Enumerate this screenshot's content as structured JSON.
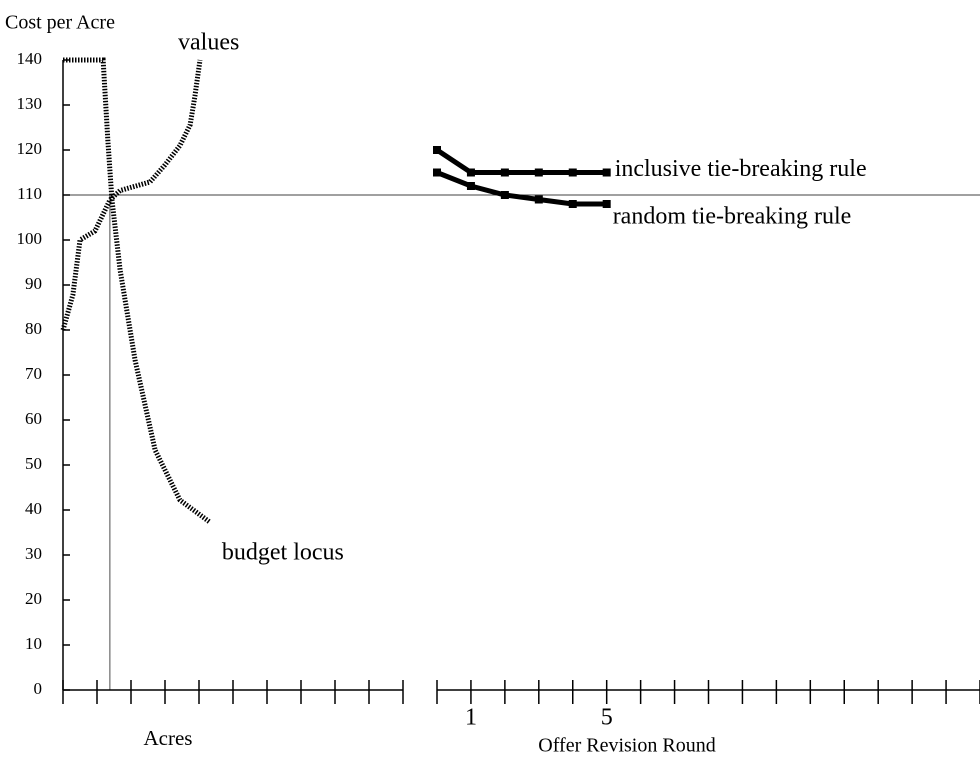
{
  "chart_data": [
    {
      "type": "line",
      "ylabel": "Cost per Acre",
      "xlabel": "Acres",
      "xlim": [
        0,
        10
      ],
      "xticks": [
        0,
        1,
        2,
        3,
        4,
        5,
        6,
        7,
        8,
        9,
        10
      ],
      "ylim": [
        0,
        140
      ],
      "yticks": [
        0,
        10,
        20,
        30,
        40,
        50,
        60,
        70,
        80,
        90,
        100,
        110,
        120,
        130,
        140
      ],
      "hline": 110,
      "vline": 1.38,
      "series": [
        {
          "name": "values",
          "color": "#000000",
          "style": "dotted",
          "x": [
            0,
            0.29,
            0.5,
            0.94,
            1.38,
            1.68,
            2.56,
            3.0,
            3.44,
            3.74,
            3.88,
            4.03
          ],
          "values": [
            80,
            87.8,
            100,
            102,
            108.9,
            111,
            112.9,
            116.7,
            121,
            125.6,
            132,
            140
          ]
        },
        {
          "name": "budget locus",
          "color": "#000000",
          "style": "dotted",
          "x": [
            0,
            1.18,
            1.32,
            1.44,
            1.68,
            2.12,
            2.71,
            3.44,
            4.32
          ],
          "values": [
            140,
            140,
            122,
            108.9,
            93.3,
            73.3,
            53.3,
            42.2,
            37.3
          ]
        }
      ]
    },
    {
      "type": "line",
      "xlabel": "Offer Revision Round",
      "xlim": [
        0,
        16
      ],
      "xticks": [
        1,
        5
      ],
      "minor_xticks": [
        0,
        1,
        2,
        3,
        4,
        5,
        6,
        7,
        8,
        9,
        10,
        11,
        12,
        13,
        14,
        15,
        16
      ],
      "ylim": [
        0,
        140
      ],
      "series": [
        {
          "name": "inclusive tie-breaking rule",
          "color": "#000000",
          "style": "solid",
          "x": [
            0,
            1,
            2,
            3,
            4,
            5
          ],
          "values": [
            120,
            115,
            115,
            115,
            115,
            115
          ]
        },
        {
          "name": "random tie-breaking rule",
          "color": "#000000",
          "style": "solid",
          "x": [
            0,
            1,
            2,
            3,
            4,
            5
          ],
          "values": [
            115,
            112,
            110,
            109,
            108,
            108
          ]
        }
      ]
    }
  ]
}
